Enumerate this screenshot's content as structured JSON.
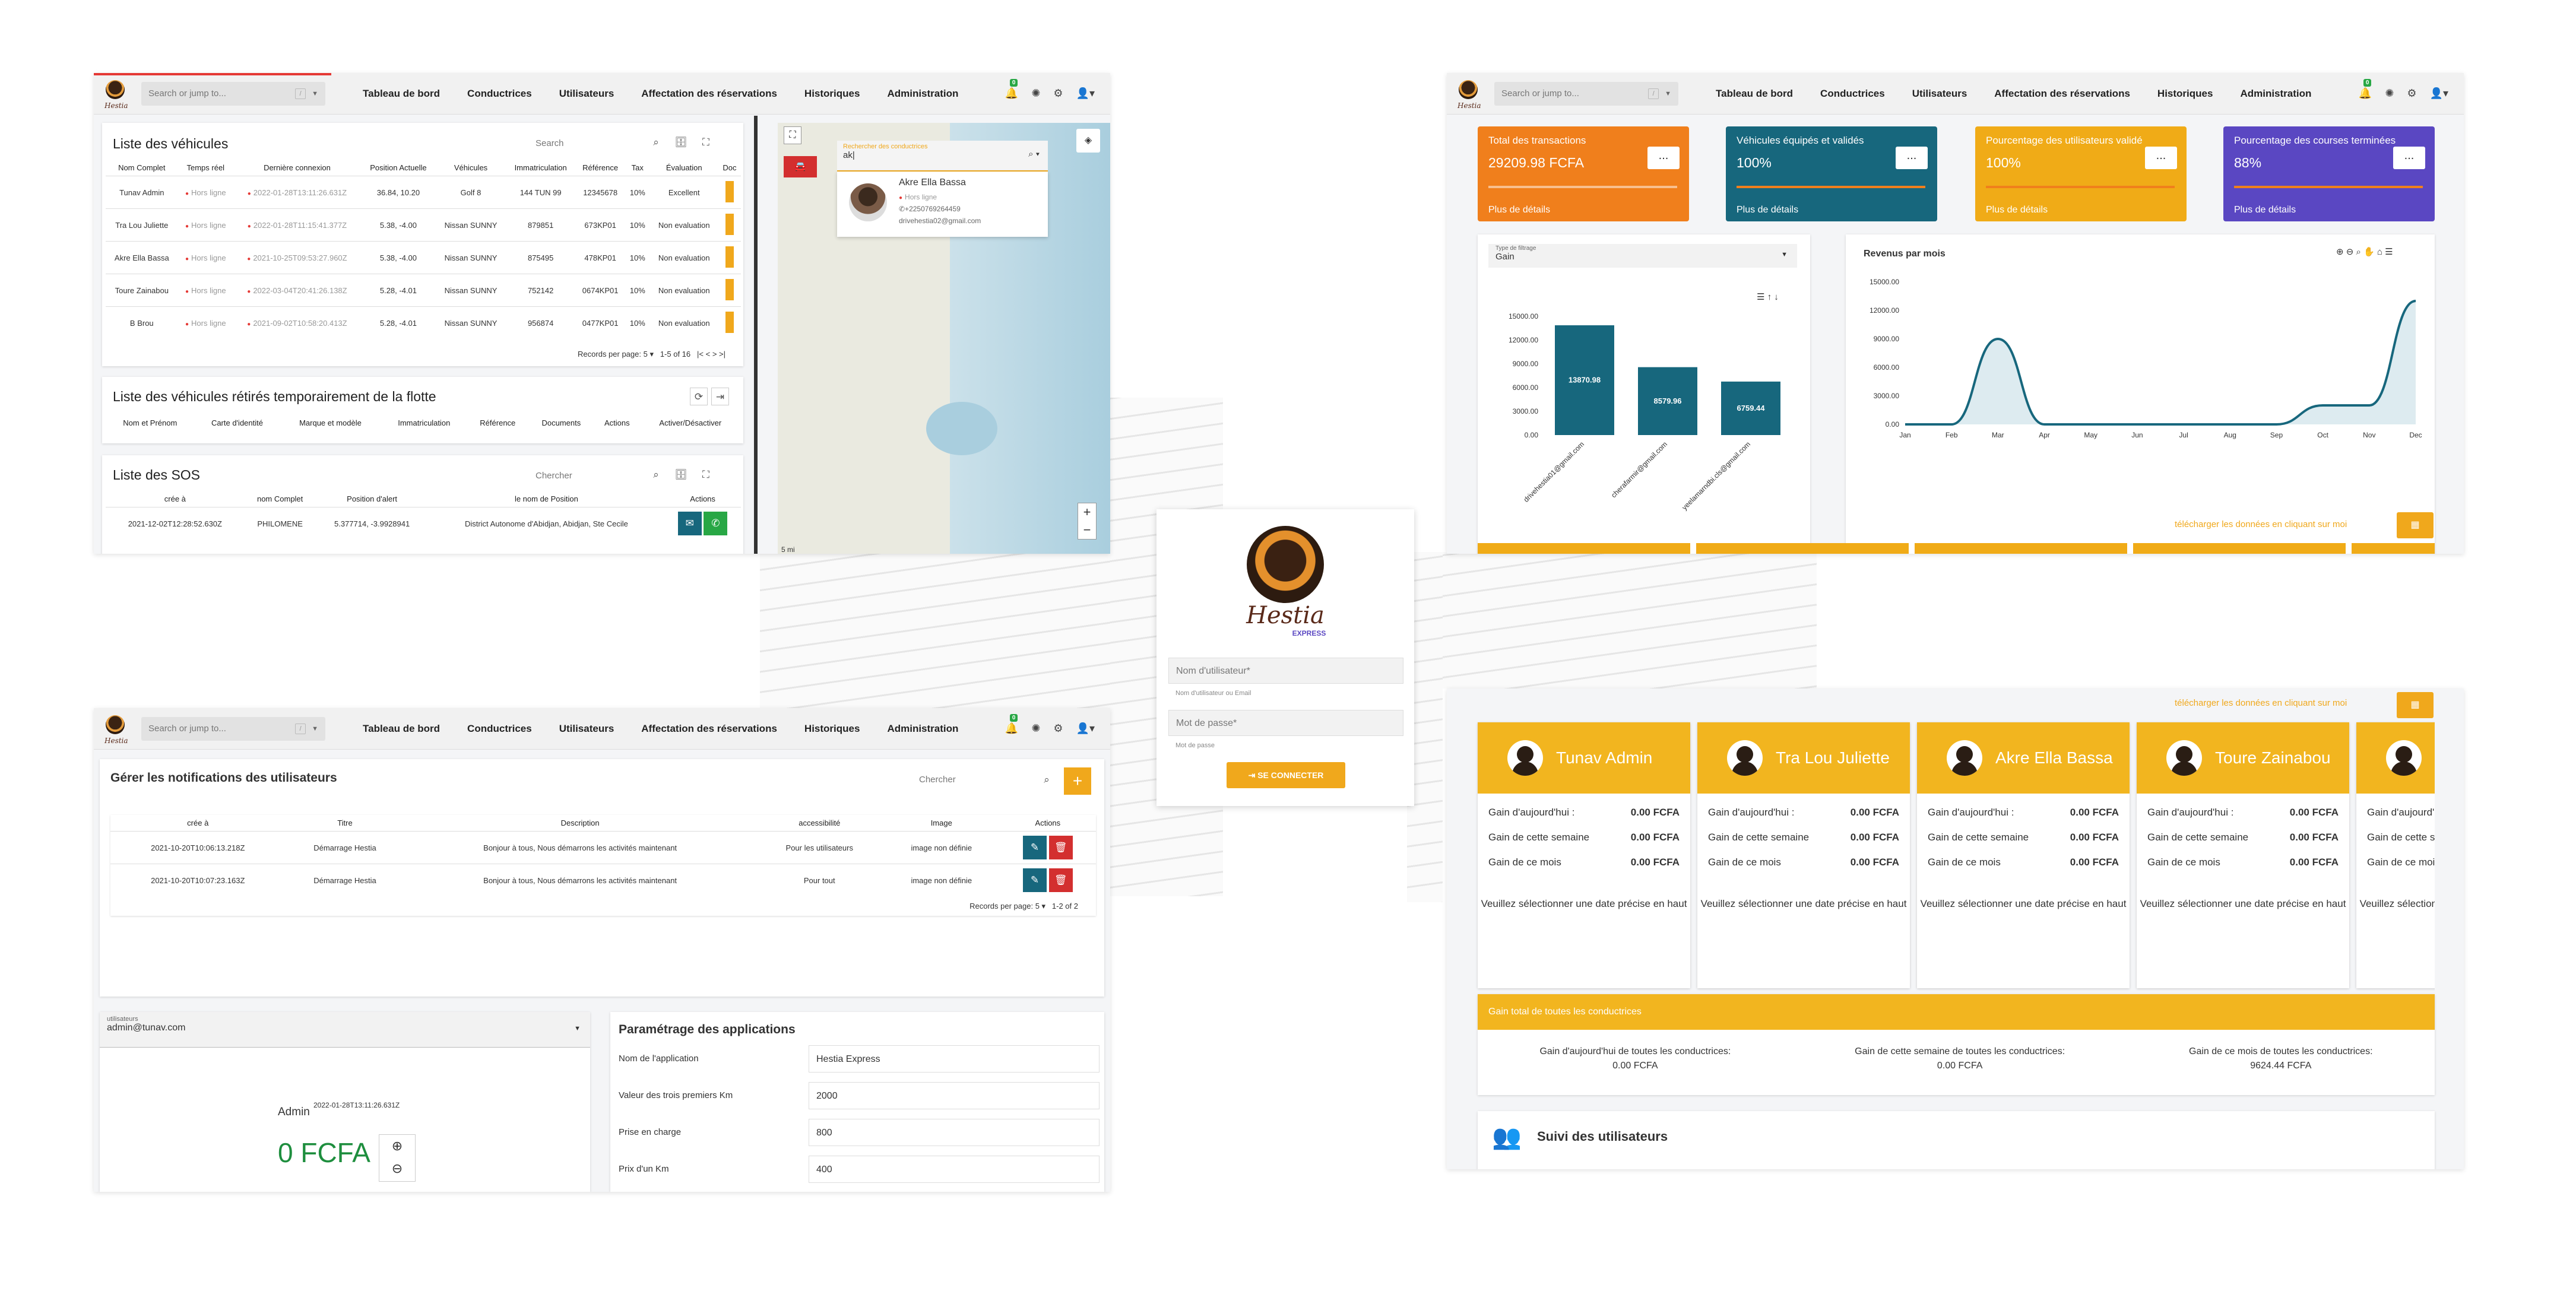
{
  "nav": {
    "search_placeholder": "Search or jump to...",
    "kbd": "/",
    "menu": [
      "Tableau de bord",
      "Conductrices",
      "Utilisateurs",
      "Affectation des réservations",
      "Historiques",
      "Administration"
    ],
    "badge": "0",
    "logo_text": "Hestia"
  },
  "vehicles": {
    "title": "Liste des véhicules",
    "search_placeholder": "Search",
    "headers": [
      "Nom Complet",
      "Temps réel",
      "Dernière connexion",
      "Position Actuelle",
      "Véhicules",
      "Immatriculation",
      "Référence",
      "Tax",
      "Évaluation",
      "Doc"
    ],
    "rows": [
      [
        "Tunav Admin",
        "Hors ligne",
        "2022-01-28T13:11:26.631Z",
        "36.84, 10.20",
        "Golf 8",
        "144 TUN 99",
        "12345678",
        "10%",
        "Excellent"
      ],
      [
        "Tra Lou Juliette",
        "Hors ligne",
        "2022-01-28T11:15:41.377Z",
        "5.38, -4.00",
        "Nissan SUNNY",
        "879851",
        "673KP01",
        "10%",
        "Non evaluation"
      ],
      [
        "Akre Ella Bassa",
        "Hors ligne",
        "2021-10-25T09:53:27.960Z",
        "5.38, -4.00",
        "Nissan SUNNY",
        "875495",
        "478KP01",
        "10%",
        "Non evaluation"
      ],
      [
        "Toure Zainabou",
        "Hors ligne",
        "2022-03-04T20:41:26.138Z",
        "5.28, -4.01",
        "Nissan SUNNY",
        "752142",
        "0674KP01",
        "10%",
        "Non evaluation"
      ],
      [
        "B Brou",
        "Hors ligne",
        "2021-09-02T10:58:20.413Z",
        "5.28, -4.01",
        "Nissan SUNNY",
        "956874",
        "0477KP01",
        "10%",
        "Non evaluation"
      ]
    ],
    "pager": "Records per page:",
    "per_page": "5",
    "range": "1-5 of 16"
  },
  "retired": {
    "title": "Liste des véhicules rétirés temporairement de la flotte",
    "headers": [
      "Nom et Prénom",
      "Carte d'identité",
      "Marque et modèle",
      "Immatriculation",
      "Référence",
      "Documents",
      "Actions",
      "Activer/Désactiver"
    ]
  },
  "sos": {
    "title": "Liste des SOS",
    "search_placeholder": "Chercher",
    "headers": [
      "crée à",
      "nom Complet",
      "Position d'alert",
      "le nom de Position",
      "Actions"
    ],
    "row": [
      "2021-12-02T12:28:52.630Z",
      "PHILOMENE",
      "5.377714, -3.9928941",
      "District Autonome d'Abidjan, Abidjan, Ste Cecile"
    ]
  },
  "map": {
    "search_label": "Rechercher des conductrices",
    "search_value": "ak|",
    "result_name": "Akre Ella Bassa",
    "result_status": "Hors ligne",
    "result_phone": "+2250769264459",
    "result_email": "drivehestia02@gmail.com",
    "zoom_in": "+",
    "zoom_out": "−",
    "scale": "5 mi"
  },
  "login": {
    "brand": "Hestia",
    "brand_sub": "EXPRESS",
    "user_placeholder": "Nom d'utilisateur*",
    "user_hint": "Nom d'utilisateur ou Email",
    "pass_placeholder": "Mot de passe*",
    "pass_hint": "Mot de passe",
    "button": "SE CONNECTER"
  },
  "stats": [
    {
      "label": "Total des transactions",
      "value": "29209.98 FCFA",
      "more": "Plus de détails",
      "color": "#f07f1c"
    },
    {
      "label": "Véhicules équipés et validés",
      "value": "100%",
      "more": "Plus de détails",
      "color": "#17677d"
    },
    {
      "label": "Pourcentage des utilisateurs validé",
      "value": "100%",
      "more": "Plus de détails",
      "color": "#f0ab17"
    },
    {
      "label": "Pourcentage des courses terminées",
      "value": "88%",
      "more": "Plus de détails",
      "color": "#5a47c2"
    }
  ],
  "stat_button": "...",
  "filter": {
    "label": "Type de filtrage",
    "value": "Gain"
  },
  "chart_data": [
    {
      "type": "bar",
      "categories": [
        "drivehestia01@gmail.com",
        "cherafarmir@gmail.com",
        "yeelamarndbi.cls@gmail.com"
      ],
      "values": [
        13870.98,
        8579.96,
        6759.44
      ],
      "ylim": [
        0,
        15000
      ],
      "yticks": [
        "15000.00",
        "12000.00",
        "9000.00",
        "6000.00",
        "3000.00",
        "0.00"
      ],
      "labels": [
        "13870.98",
        "8579.96",
        "6759.44"
      ]
    },
    {
      "type": "area",
      "title": "Revenus par mois",
      "categories": [
        "Jan",
        "Feb",
        "Mar",
        "Apr",
        "May",
        "Jun",
        "Jul",
        "Aug",
        "Sep",
        "Oct",
        "Nov",
        "Dec"
      ],
      "values": [
        0,
        0,
        9000,
        0,
        0,
        0,
        0,
        0,
        0,
        2000,
        2000,
        13000
      ],
      "ylim": [
        0,
        15000
      ],
      "yticks": [
        "15000.00",
        "12000.00",
        "9000.00",
        "6000.00",
        "3000.00",
        "0.00"
      ]
    }
  ],
  "download_text": "télécharger les données en cliquant sur moi",
  "notif": {
    "title": "Gérer les notifications des utilisateurs",
    "search_placeholder": "Chercher",
    "headers": [
      "crée à",
      "Titre",
      "Description",
      "accessibilité",
      "Image",
      "Actions"
    ],
    "rows": [
      [
        "2021-10-20T10:06:13.218Z",
        "Démarrage Hestia",
        "Bonjour à tous, Nous démarrons les activités maintenant",
        "Pour les utilisateurs",
        "image non définie"
      ],
      [
        "2021-10-20T10:07:23.163Z",
        "Démarrage Hestia",
        "Bonjour à tous, Nous démarrons les activités maintenant",
        "Pour tout",
        "image non définie"
      ]
    ],
    "pager": "Records per page:",
    "per_page": "5",
    "range": "1-2 of 2"
  },
  "user_select": {
    "label": "utilisateurs",
    "value": "admin@tunav.com",
    "name": "Admin",
    "date": "2022-01-28T13:11:26.631Z",
    "amount": "0 FCFA"
  },
  "settings": {
    "title": "Paramétrage des applications",
    "rows": [
      [
        "Nom de l'application",
        "Hestia Express"
      ],
      [
        "Valeur des trois premiers Km",
        "2000"
      ],
      [
        "Prise en charge",
        "800"
      ],
      [
        "Prix d'un Km",
        "400"
      ]
    ]
  },
  "drivers": [
    {
      "name": "Tunav Admin"
    },
    {
      "name": "Tra Lou Juliette"
    },
    {
      "name": "Akre Ella Bassa"
    },
    {
      "name": "Toure Zainabou"
    },
    {
      "name": ""
    }
  ],
  "driver_rows": {
    "today": "Gain d'aujourd'hui :",
    "week": "Gain de cette semaine",
    "month": "Gain de ce mois",
    "value": "0.00 FCFA",
    "msg": "Veuillez sélectionner une date précise en haut"
  },
  "total": {
    "title": "Gain total de toutes les conductrices",
    "today_label": "Gain d'aujourd'hui de toutes les conductrices:",
    "today": "0.00 FCFA",
    "week_label": "Gain de cette semaine de toutes les conductrices:",
    "week": "0.00 FCFA",
    "month_label": "Gain de ce mois de toutes les conductrices:",
    "month": "9624.44 FCFA"
  },
  "tracking": {
    "title": "Suivi des utilisateurs"
  }
}
